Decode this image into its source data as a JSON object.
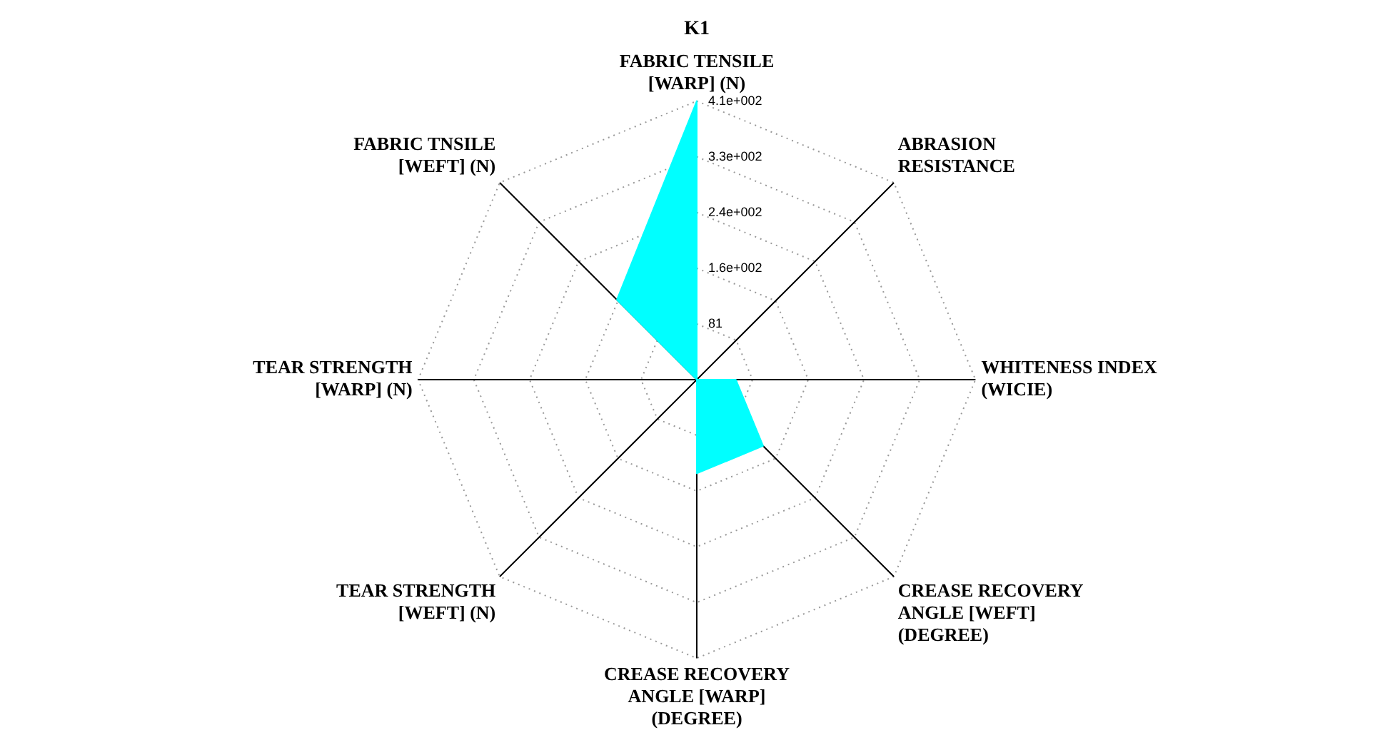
{
  "chart_data": {
    "type": "radar",
    "title": "K1",
    "categories": [
      "FABRIC TENSILE [WARP] (N)",
      "ABRASION RESISTANCE",
      "WHITENESS INDEX (WICIE)",
      "CREASE RECOVERY ANGLE [WEFT] (DEGREE)",
      "CREASE RECOVERY ANGLE [WARP] (DEGREE)",
      "TEAR STRENGTH [WEFT] (N)",
      "TEAR STRENGTH [WARP] (N)",
      "FABRIC TNSILE [WEFT] (N)"
    ],
    "series": [
      {
        "color": "#00ffff",
        "values": [
          407,
          0,
          57,
          137,
          137,
          0,
          0,
          165
        ]
      }
    ],
    "ylim": [
      0,
      407
    ],
    "yticks": [
      {
        "value": 81.4,
        "label": "81"
      },
      {
        "value": 162.8,
        "label": "1.6e+002"
      },
      {
        "value": 244.2,
        "label": "2.4e+002"
      },
      {
        "value": 325.6,
        "label": "3.3e+002"
      },
      {
        "value": 407,
        "label": "4.1e+002"
      }
    ],
    "grid": true,
    "legend": false,
    "marker": "none"
  }
}
